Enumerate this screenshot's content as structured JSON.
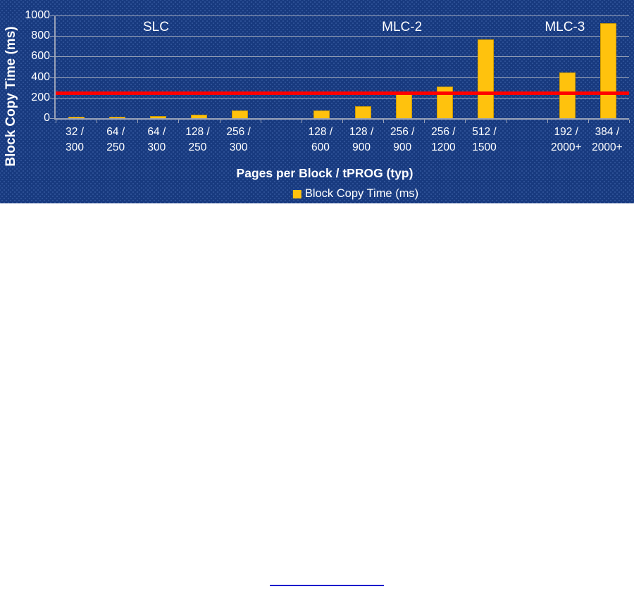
{
  "page": {
    "background_color": "#FFFFFF",
    "chart_background_color": "#17397E",
    "text_color": "#FFFFFF",
    "gridline_color": "#9AA3B8",
    "underline_color": "#1414CC"
  },
  "chart_data": {
    "type": "bar",
    "title": "",
    "xlabel": "Pages per Block / tPROG (typ)",
    "ylabel": "Block Copy Time (ms)",
    "series_name": "Block Copy Time (ms)",
    "ylim": [
      0,
      1000
    ],
    "ytick_step": 200,
    "yticks": [
      0,
      200,
      400,
      600,
      800,
      1000
    ],
    "grid": true,
    "legend_position": "bottom",
    "bar_color": "#FFC20D",
    "bar_border_color": "#CE9A00",
    "reference_line": {
      "value": 250,
      "color": "#FF0000"
    },
    "group_labels": [
      {
        "text": "SLC",
        "x_pct": 17.5
      },
      {
        "text": "MLC-2",
        "x_pct": 60.4
      },
      {
        "text": "MLC-3",
        "x_pct": 88.8
      }
    ],
    "slots": [
      {
        "line1": "32 /",
        "line2": "300",
        "value": 9.6,
        "group": "SLC"
      },
      {
        "line1": "64 /",
        "line2": "250",
        "value": 16,
        "group": "SLC"
      },
      {
        "line1": "64 /",
        "line2": "300",
        "value": 19.2,
        "group": "SLC"
      },
      {
        "line1": "128 /",
        "line2": "250",
        "value": 32,
        "group": "SLC"
      },
      {
        "line1": "256 /",
        "line2": "300",
        "value": 76.8,
        "group": "SLC"
      },
      {
        "line1": "",
        "line2": "",
        "value": null,
        "group": null
      },
      {
        "line1": "128 /",
        "line2": "600",
        "value": 76.8,
        "group": "MLC-2"
      },
      {
        "line1": "128 /",
        "line2": "900",
        "value": 115.2,
        "group": "MLC-2"
      },
      {
        "line1": "256 /",
        "line2": "900",
        "value": 230.4,
        "group": "MLC-2"
      },
      {
        "line1": "256 /",
        "line2": "1200",
        "value": 307.2,
        "group": "MLC-2"
      },
      {
        "line1": "512 /",
        "line2": "1500",
        "value": 768,
        "group": "MLC-2"
      },
      {
        "line1": "",
        "line2": "",
        "value": null,
        "group": null
      },
      {
        "line1": "192 /",
        "line2": "2000+",
        "value": 445,
        "group": "MLC-3"
      },
      {
        "line1": "384 /",
        "line2": "2000+",
        "value": 922,
        "group": "MLC-3"
      }
    ]
  }
}
